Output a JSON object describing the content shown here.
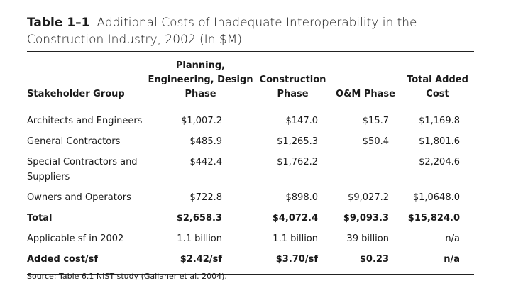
{
  "title": {
    "label": "Table 1–1",
    "text": "Additional Costs of Inadequate Interoperability in the Construction Industry, 2002 (In $M)"
  },
  "table": {
    "headers": [
      "Stakeholder Group",
      "Planning, Engineering, Design Phase",
      "Construction Phase",
      "O&M Phase",
      "Total Added Cost"
    ],
    "rows": [
      {
        "cells": [
          "Architects and Engineers",
          "$1,007.2",
          "$147.0",
          "$15.7",
          "$1,169.8"
        ],
        "bold": false
      },
      {
        "cells": [
          "General Contractors",
          "$485.9",
          "$1,265.3",
          "$50.4",
          "$1,801.6"
        ],
        "bold": false
      },
      {
        "cells": [
          "Special Contractors and Suppliers",
          "$442.4",
          "$1,762.2",
          null,
          "$2,204.6"
        ],
        "bold": false
      },
      {
        "cells": [
          "Owners and Operators",
          "$722.8",
          "$898.0",
          "$9,027.2",
          "$1,0648.0"
        ],
        "bold": false
      },
      {
        "cells": [
          "Total",
          "$2,658.3",
          "$4,072.4",
          "$9,093.3",
          "$15,824.0"
        ],
        "bold": true
      },
      {
        "cells": [
          "Applicable sf in 2002",
          "1.1 billion",
          "1.1 billion",
          "39 billion",
          "n/a"
        ],
        "bold": false
      },
      {
        "cells": [
          "Added cost/sf",
          "$2.42/sf",
          "$3.70/sf",
          "$0.23",
          "n/a"
        ],
        "bold": true
      }
    ]
  },
  "source": "Source: Table 6.1 NIST study (Gallaher et al. 2004)."
}
